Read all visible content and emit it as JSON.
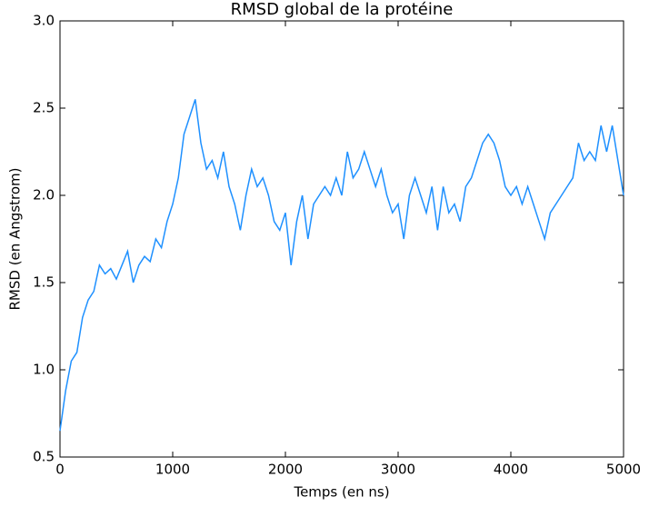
{
  "chart_data": {
    "type": "line",
    "title": "RMSD global de la protéine",
    "x_label": "Temps (en ns)",
    "y_label": "RMSD (en Angstrom)",
    "x": [
      0,
      50,
      100,
      150,
      200,
      250,
      300,
      350,
      400,
      450,
      500,
      550,
      600,
      650,
      700,
      750,
      800,
      850,
      900,
      950,
      1000,
      1050,
      1100,
      1150,
      1200,
      1250,
      1300,
      1350,
      1400,
      1450,
      1500,
      1550,
      1600,
      1650,
      1700,
      1750,
      1800,
      1850,
      1900,
      1950,
      2000,
      2050,
      2100,
      2150,
      2200,
      2250,
      2300,
      2350,
      2400,
      2450,
      2500,
      2550,
      2600,
      2650,
      2700,
      2750,
      2800,
      2850,
      2900,
      2950,
      3000,
      3050,
      3100,
      3150,
      3200,
      3250,
      3300,
      3350,
      3400,
      3450,
      3500,
      3550,
      3600,
      3650,
      3700,
      3750,
      3800,
      3850,
      3900,
      3950,
      4000,
      4050,
      4100,
      4150,
      4200,
      4250,
      4300,
      4350,
      4400,
      4450,
      4500,
      4550,
      4600,
      4650,
      4700,
      4750,
      4800,
      4850,
      4900,
      4950,
      5000
    ],
    "series": [
      {
        "name": "RMSD",
        "color": "#1e90ff",
        "values": [
          0.65,
          0.88,
          1.05,
          1.1,
          1.3,
          1.4,
          1.45,
          1.6,
          1.55,
          1.58,
          1.52,
          1.6,
          1.68,
          1.5,
          1.6,
          1.65,
          1.62,
          1.75,
          1.7,
          1.85,
          1.95,
          2.1,
          2.35,
          2.45,
          2.55,
          2.3,
          2.15,
          2.2,
          2.1,
          2.25,
          2.05,
          1.95,
          1.8,
          2.0,
          2.15,
          2.05,
          2.1,
          2.0,
          1.85,
          1.8,
          1.9,
          1.6,
          1.85,
          2.0,
          1.75,
          1.95,
          2.0,
          2.05,
          2.0,
          2.1,
          2.0,
          2.25,
          2.1,
          2.15,
          2.25,
          2.15,
          2.05,
          2.15,
          2.0,
          1.9,
          1.95,
          1.75,
          2.0,
          2.1,
          2.0,
          1.9,
          2.05,
          1.8,
          2.05,
          1.9,
          1.95,
          1.85,
          2.05,
          2.1,
          2.2,
          2.3,
          2.35,
          2.3,
          2.2,
          2.05,
          2.0,
          2.05,
          1.95,
          2.05,
          1.95,
          1.85,
          1.75,
          1.9,
          1.95,
          2.0,
          2.05,
          2.1,
          2.3,
          2.2,
          2.25,
          2.2,
          2.4,
          2.25,
          2.4,
          2.2,
          2.0
        ]
      }
    ],
    "xlim": [
      0,
      5000
    ],
    "xticks": [
      0,
      1000,
      2000,
      3000,
      4000,
      5000
    ],
    "ylim": [
      0.5,
      3.0
    ],
    "yticks": [
      0.5,
      {
        "value": 1.0,
        "label": "1.0"
      },
      1.5,
      {
        "value": 2.0,
        "label": "2.0"
      },
      2.5,
      {
        "value": 3.0,
        "label": "3.0"
      }
    ],
    "grid": false
  }
}
